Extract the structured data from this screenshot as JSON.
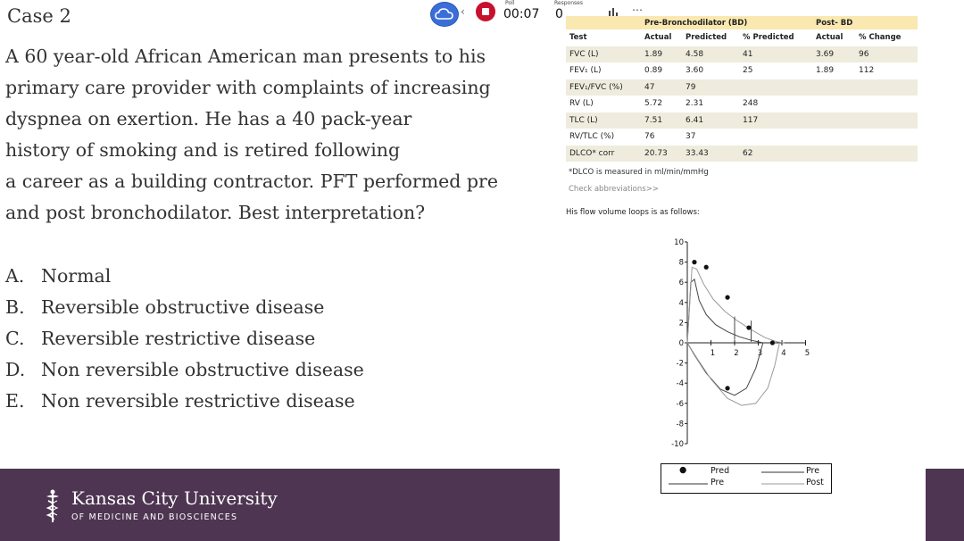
{
  "slide": {
    "title": "Case 2",
    "question": "A 60 year-old African American man presents to his primary care provider with complaints of increasing dyspnea on exertion. He has a 40 pack-year history of smoking and is retired following a career as a building contractor.  PFT performed pre and post bronchodilator.  Best interpretation?",
    "question_lines": [
      "A 60 year-old African American man presents to his",
      "primary care provider with complaints of increasing",
      "dyspnea on exertion. He has a 40 pack-year",
      "history of smoking and is retired following",
      "a career as a building contractor.  PFT performed pre",
      "and post bronchodilator.  Best interpretation?"
    ],
    "options": [
      {
        "letter": "A.",
        "text": "Normal"
      },
      {
        "letter": "B.",
        "text": "Reversible obstructive disease"
      },
      {
        "letter": "C.",
        "text": "Reversible restrictive disease"
      },
      {
        "letter": "D.",
        "text": "Non reversible obstructive disease"
      },
      {
        "letter": "E.",
        "text": "Non reversible restrictive disease"
      }
    ]
  },
  "footer": {
    "name": "Kansas City University",
    "subtitle": "OF MEDICINE AND BIOSCIENCES",
    "color": "#4e3552"
  },
  "toolbar": {
    "poll_label": "Poll",
    "poll_time": "00:07",
    "responses_label": "Responses",
    "responses_count": "0",
    "icons": [
      "cloud-icon",
      "chevron-left-icon",
      "stop-icon",
      "bar-chart-icon",
      "more-icon"
    ],
    "record_color": "#c8102e",
    "cloud_color": "#3a6fd9"
  },
  "pft": {
    "group_pre": "Pre-Bronchodilator (BD)",
    "group_post": "Post- BD",
    "headers": [
      "Test",
      "Actual",
      "Predicted",
      "% Predicted",
      "Actual",
      "% Change"
    ],
    "rows": [
      {
        "test": "FVC (L)",
        "actual": "1.89",
        "predicted": "4.58",
        "pct": "41",
        "post": "3.69",
        "change": "96",
        "shaded": true
      },
      {
        "test": "FEV₁ (L)",
        "actual": "0.89",
        "predicted": "3.60",
        "pct": "25",
        "post": "1.89",
        "change": "112",
        "shaded": false
      },
      {
        "test": "FEV₁/FVC (%)",
        "actual": "47",
        "predicted": "79",
        "pct": "",
        "post": "",
        "change": "",
        "shaded": true
      },
      {
        "test": "RV (L)",
        "actual": "5.72",
        "predicted": "2.31",
        "pct": "248",
        "post": "",
        "change": "",
        "shaded": false
      },
      {
        "test": "TLC (L)",
        "actual": "7.51",
        "predicted": "6.41",
        "pct": "117",
        "post": "",
        "change": "",
        "shaded": true
      },
      {
        "test": "RV/TLC (%)",
        "actual": "76",
        "predicted": "37",
        "pct": "",
        "post": "",
        "change": "",
        "shaded": false
      },
      {
        "test": "DLCO* corr",
        "actual": "20.73",
        "predicted": "33.43",
        "pct": "62",
        "post": "",
        "change": "",
        "shaded": true
      }
    ],
    "note": "*DLCO is measured in ml/min/mmHg",
    "abbrev_link": "Check abbreviations>>",
    "header_color": "#f9e8b0"
  },
  "chart_data": {
    "type": "line",
    "caption": "His flow volume loops is as follows:",
    "x_ticks": [
      "1",
      "2",
      "3",
      "4",
      "5"
    ],
    "y_ticks": [
      "10",
      "8",
      "6",
      "4",
      "2",
      "0",
      "-2",
      "-4",
      "-6",
      "-8",
      "-10"
    ],
    "xlim": [
      0,
      5
    ],
    "ylim": [
      -10,
      10
    ],
    "predicted_points": {
      "name": "Pred",
      "x": [
        0.3,
        0.8,
        1.7,
        2.6,
        3.6,
        1.7
      ],
      "y": [
        8,
        7.5,
        4.5,
        1.5,
        0,
        -4.5
      ]
    },
    "series": [
      {
        "name": "Pre",
        "style": "solid",
        "expiratory": {
          "x": [
            0,
            0.15,
            0.3,
            0.5,
            0.8,
            1.2,
            1.7,
            2.2,
            2.7,
            3.2
          ],
          "y": [
            0,
            6,
            6.3,
            4.2,
            2.8,
            1.8,
            1.1,
            0.6,
            0.25,
            0
          ]
        },
        "inspiratory": {
          "x": [
            0,
            0.3,
            0.8,
            1.4,
            2.0,
            2.5,
            2.9,
            3.2
          ],
          "y": [
            0,
            -1.2,
            -3.0,
            -4.6,
            -5.2,
            -4.5,
            -2.5,
            0
          ]
        }
      },
      {
        "name": "Post",
        "style": "light",
        "expiratory": {
          "x": [
            0,
            0.2,
            0.4,
            0.7,
            1.1,
            1.6,
            2.1,
            2.7,
            3.3,
            3.8,
            4.1
          ],
          "y": [
            0,
            7.5,
            7.3,
            5.8,
            4.3,
            3.1,
            2.2,
            1.3,
            0.5,
            0.1,
            0
          ]
        },
        "inspiratory": {
          "x": [
            0,
            0.4,
            1.0,
            1.7,
            2.3,
            2.9,
            3.4,
            3.7,
            3.9
          ],
          "y": [
            0,
            -1.5,
            -3.6,
            -5.5,
            -6.2,
            -6.0,
            -4.5,
            -2.2,
            0
          ]
        }
      }
    ],
    "legend": {
      "col1_top": "Pred",
      "col1_bottom": "Pre",
      "col2_top": "Pre",
      "col2_bottom": "Post"
    }
  }
}
